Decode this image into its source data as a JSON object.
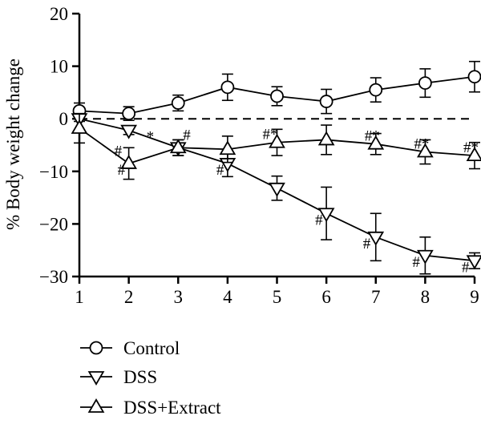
{
  "chart_data": {
    "type": "line",
    "ylabel": "% Body weight change",
    "xlabel": "",
    "xlim": [
      1,
      9
    ],
    "ylim": [
      -30,
      20
    ],
    "x": [
      1,
      2,
      3,
      4,
      5,
      6,
      7,
      8,
      9
    ],
    "x_ticks": [
      "1",
      "2",
      "3",
      "4",
      "5",
      "6",
      "7",
      "8",
      "9"
    ],
    "y_ticks": [
      {
        "value": 20,
        "label": "20"
      },
      {
        "value": 10,
        "label": "10"
      },
      {
        "value": 0,
        "label": "0"
      },
      {
        "value": -10,
        "label": "−10"
      },
      {
        "value": -20,
        "label": "−20"
      },
      {
        "value": -30,
        "label": "−30"
      }
    ],
    "reference_line": {
      "y": 0,
      "style": "dashed"
    },
    "series": [
      {
        "name": "Control",
        "marker": "circle",
        "values": [
          1.5,
          1.0,
          3.0,
          6.0,
          4.3,
          3.3,
          5.5,
          6.8,
          8.0
        ],
        "errors": [
          1.5,
          1.3,
          1.5,
          2.5,
          1.8,
          2.3,
          2.3,
          2.7,
          2.9
        ]
      },
      {
        "name": "DSS",
        "marker": "triangle-down",
        "values": [
          0.0,
          -2.2,
          -5.5,
          -8.5,
          -13.2,
          -18.0,
          -22.5,
          -26.0,
          -27.0
        ],
        "errors": [
          0.5,
          0.8,
          1.5,
          2.5,
          2.3,
          5.0,
          4.5,
          3.5,
          1.5
        ]
      },
      {
        "name": "DSS+Extract",
        "marker": "triangle-up",
        "values": [
          -1.8,
          -8.5,
          -5.5,
          -5.8,
          -4.5,
          -4.0,
          -4.8,
          -6.3,
          -7.0
        ],
        "errors": [
          2.8,
          3.0,
          1.5,
          2.5,
          2.5,
          2.8,
          2.0,
          2.3,
          2.5
        ]
      }
    ],
    "annotations": [
      {
        "text": "#",
        "x": 2,
        "y": -2.2,
        "dx": -18,
        "dy": 32
      },
      {
        "text": "*",
        "x": 2,
        "y": -2.2,
        "dx": 22,
        "dy": 14
      },
      {
        "text": "#",
        "x": 2,
        "y": -8.5,
        "dx": -14,
        "dy": 14
      },
      {
        "text": "#",
        "x": 3,
        "y": -5.5,
        "dx": 6,
        "dy": -10
      },
      {
        "text": "#",
        "x": 4,
        "y": -8.5,
        "dx": -14,
        "dy": 14
      },
      {
        "text": "#*",
        "x": 5,
        "y": -4.5,
        "dx": -18,
        "dy": -4
      },
      {
        "text": "#",
        "x": 6,
        "y": -18.0,
        "dx": -14,
        "dy": 14
      },
      {
        "text": "#*",
        "x": 7,
        "y": -4.8,
        "dx": -14,
        "dy": -4
      },
      {
        "text": "#",
        "x": 7,
        "y": -22.5,
        "dx": -16,
        "dy": 14
      },
      {
        "text": "#*",
        "x": 8,
        "y": -6.3,
        "dx": -14,
        "dy": -4
      },
      {
        "text": "#",
        "x": 8,
        "y": -26.0,
        "dx": -16,
        "dy": 14
      },
      {
        "text": "#*",
        "x": 9,
        "y": -7.0,
        "dx": -14,
        "dy": -4
      },
      {
        "text": "#",
        "x": 9,
        "y": -27.0,
        "dx": -16,
        "dy": 14
      }
    ],
    "grid": false,
    "legend": "bottom-left"
  }
}
